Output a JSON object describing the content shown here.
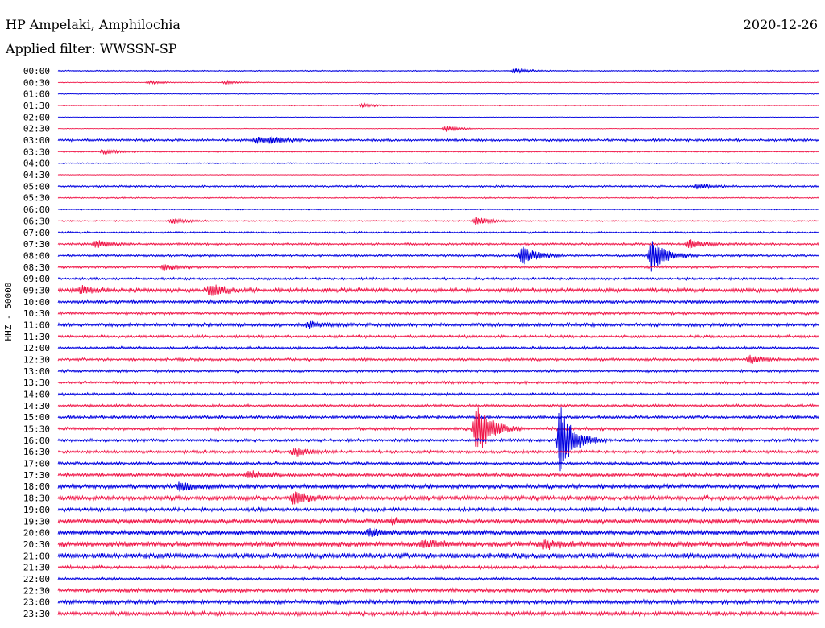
{
  "header": {
    "title": "HP Ampelaki, Amphilochia",
    "date": "2020-12-26",
    "filter": "Applied filter: WWSSN-SP",
    "y_axis_label": "HHZ - 50000"
  },
  "colors": {
    "blue": "#0000e0",
    "red": "#f0184a"
  },
  "chart_data": {
    "type": "line",
    "title": "HP Ampelaki, Amphilochia",
    "xlabel": "",
    "ylabel": "HHZ - 50000",
    "row_labels": [
      "00:00",
      "00:30",
      "01:00",
      "01:30",
      "02:00",
      "02:30",
      "03:00",
      "03:30",
      "04:00",
      "04:30",
      "05:00",
      "05:30",
      "06:00",
      "06:30",
      "07:00",
      "07:30",
      "08:00",
      "08:30",
      "09:00",
      "09:30",
      "10:00",
      "10:30",
      "11:00",
      "11:30",
      "12:00",
      "12:30",
      "13:00",
      "13:30",
      "14:00",
      "14:30",
      "15:00",
      "15:30",
      "16:00",
      "16:30",
      "17:00",
      "17:30",
      "18:00",
      "18:30",
      "19:00",
      "19:30",
      "20:00",
      "20:30",
      "21:00",
      "21:30",
      "22:00",
      "22:30",
      "23:00",
      "23:30"
    ],
    "row_colors": [
      "blue",
      "red"
    ],
    "noise_levels": [
      0.6,
      0.4,
      0.5,
      0.5,
      0.3,
      0.3,
      1.3,
      0.6,
      0.6,
      0.4,
      1.0,
      0.7,
      0.6,
      0.7,
      1.0,
      1.2,
      1.2,
      1.3,
      1.3,
      2.2,
      1.8,
      1.5,
      1.8,
      1.5,
      1.4,
      1.4,
      1.4,
      1.4,
      1.4,
      1.4,
      1.6,
      1.6,
      1.6,
      1.6,
      1.6,
      1.9,
      2.2,
      2.4,
      2.0,
      2.4,
      2.6,
      3.0,
      2.8,
      1.8,
      1.4,
      2.0,
      2.2,
      2.2
    ],
    "events": [
      {
        "row": "00:00",
        "t": 0.6,
        "amp": 3
      },
      {
        "row": "00:30",
        "t": 0.12,
        "amp": 2
      },
      {
        "row": "00:30",
        "t": 0.22,
        "amp": 2
      },
      {
        "row": "01:30",
        "t": 0.4,
        "amp": 2
      },
      {
        "row": "02:30",
        "t": 0.51,
        "amp": 4
      },
      {
        "row": "03:00",
        "t": 0.26,
        "amp": 4
      },
      {
        "row": "03:00",
        "t": 0.28,
        "amp": 4
      },
      {
        "row": "03:30",
        "t": 0.06,
        "amp": 3
      },
      {
        "row": "05:00",
        "t": 0.84,
        "amp": 3
      },
      {
        "row": "06:30",
        "t": 0.15,
        "amp": 4
      },
      {
        "row": "06:30",
        "t": 0.55,
        "amp": 5
      },
      {
        "row": "07:30",
        "t": 0.05,
        "amp": 5
      },
      {
        "row": "07:30",
        "t": 0.83,
        "amp": 6
      },
      {
        "row": "08:00",
        "t": 0.61,
        "amp": 13
      },
      {
        "row": "08:00",
        "t": 0.78,
        "amp": 22
      },
      {
        "row": "08:30",
        "t": 0.14,
        "amp": 4
      },
      {
        "row": "09:30",
        "t": 0.03,
        "amp": 5
      },
      {
        "row": "09:30",
        "t": 0.2,
        "amp": 8
      },
      {
        "row": "11:00",
        "t": 0.33,
        "amp": 4
      },
      {
        "row": "12:30",
        "t": 0.91,
        "amp": 5
      },
      {
        "row": "15:30",
        "t": 0.55,
        "amp": 37
      },
      {
        "row": "16:00",
        "t": 0.66,
        "amp": 44
      },
      {
        "row": "16:30",
        "t": 0.31,
        "amp": 5
      },
      {
        "row": "17:30",
        "t": 0.25,
        "amp": 5
      },
      {
        "row": "18:00",
        "t": 0.16,
        "amp": 6
      },
      {
        "row": "18:30",
        "t": 0.31,
        "amp": 8
      },
      {
        "row": "19:30",
        "t": 0.44,
        "amp": 4
      },
      {
        "row": "20:00",
        "t": 0.41,
        "amp": 5
      },
      {
        "row": "20:30",
        "t": 0.64,
        "amp": 5
      },
      {
        "row": "20:30",
        "t": 0.48,
        "amp": 5
      }
    ]
  }
}
